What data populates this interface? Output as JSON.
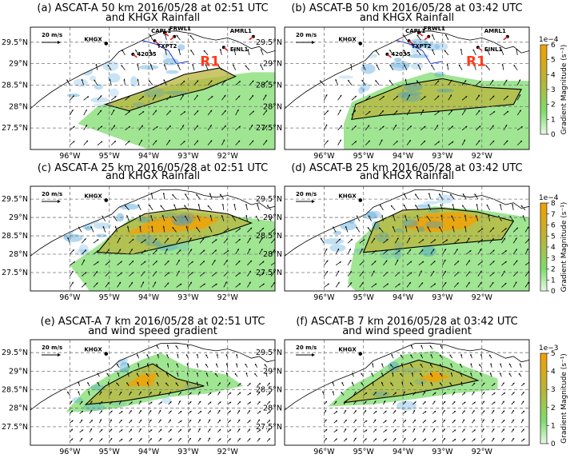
{
  "figure": {
    "panels": [
      {
        "id": "a",
        "title1": "(a) ASCAT-A 50 km 2016/05/28 at 02:51 UTC",
        "title2": "and KHGX Rainfall",
        "legend_speed": "20 m/s",
        "radar": "KHGX",
        "stations": [
          "FRWL1",
          "TXPT2",
          "42035",
          "CAPL1",
          "AMRL1",
          "EINL1"
        ],
        "region_label": "R1",
        "overlay": "rainfall",
        "variant": "a"
      },
      {
        "id": "b",
        "title1": "(b) ASCAT-B 50 km 2016/05/28 at 03:42 UTC",
        "title2": "and KHGX Rainfall",
        "legend_speed": "20 m/s",
        "radar": "KHGX",
        "stations": [
          "FRWL1",
          "TXPT2",
          "42035",
          "CAPL1",
          "AMRL1",
          "EINL1"
        ],
        "region_label": "R1",
        "overlay": "rainfall",
        "variant": "b"
      },
      {
        "id": "c",
        "title1": "(c) ASCAT-A 25 km 2016/05/28 at 02:51 UTC",
        "title2": "and KHGX Rainfall",
        "legend_speed": "20 m/s",
        "radar": "KHGX",
        "stations": [],
        "region_label": "",
        "overlay": "rainfall",
        "variant": "c"
      },
      {
        "id": "d",
        "title1": "(d) ASCAT-B 25 km 2016/05/28 at 03:42 UTC",
        "title2": "and KHGX Rainfall",
        "legend_speed": "20 m/s",
        "radar": "KHGX",
        "stations": [],
        "region_label": "",
        "overlay": "rainfall",
        "variant": "d"
      },
      {
        "id": "e",
        "title1": "(e) ASCAT-A 7 km 2016/05/28 at 02:51 UTC",
        "title2": "and wind speed gradient",
        "legend_speed": "20 m/s",
        "radar": "KHGX",
        "stations": [],
        "region_label": "",
        "overlay": "gradient",
        "variant": "e"
      },
      {
        "id": "f",
        "title1": "(f) ASCAT-B 7 km 2016/05/28 at 03:42 UTC",
        "title2": "and wind speed gradient",
        "legend_speed": "20 m/s",
        "radar": "KHGX",
        "stations": [],
        "region_label": "",
        "overlay": "gradient",
        "variant": "f"
      }
    ],
    "colorbars": [
      {
        "row": 0,
        "exp": "1e−4",
        "label": "Gradient Magnitude (s⁻¹)",
        "ticks": [
          "0",
          "1",
          "2",
          "3",
          "4",
          "5",
          "6"
        ],
        "max": 6
      },
      {
        "row": 1,
        "exp": "1e−4",
        "label": "Gradient Magnitude (s⁻¹)",
        "ticks": [
          "0",
          "1",
          "2",
          "3",
          "4",
          "5",
          "6",
          "7",
          "8"
        ],
        "max": 8
      },
      {
        "row": 2,
        "exp": "1e−3",
        "label": "Gradient Magnitude (s⁻¹)",
        "ticks": [
          "0",
          "1",
          "2",
          "3",
          "4",
          "5"
        ],
        "max": 5
      }
    ],
    "colors": {
      "low": "#7fdc6e",
      "mid": "#b8b43a",
      "high": "#f5a000",
      "rain": "#3a9ad6",
      "coast": "#000000",
      "rain_contour": "#1b2bd8"
    }
  },
  "chart_data": [
    {
      "type": "heatmap",
      "panel": "a",
      "title": "(a) ASCAT-A 50 km 2016/05/28 at 02:51 UTC and KHGX Rainfall",
      "xlabel": "",
      "ylabel": "",
      "xlim": [
        -97.0,
        -90.8
      ],
      "ylim": [
        27.0,
        29.85
      ],
      "x_ticks": [
        "96°W",
        "95°W",
        "94°W",
        "93°W",
        "92°W"
      ],
      "x_tick_values": [
        -96,
        -95,
        -94,
        -93,
        -92
      ],
      "y_ticks": [
        "27.5°N",
        "28°N",
        "28.5°N",
        "29°N",
        "29.5°N"
      ],
      "y_tick_values": [
        27.5,
        28,
        28.5,
        29,
        29.5
      ]
    },
    {
      "type": "heatmap",
      "panel": "b",
      "title": "(b) ASCAT-B 50 km 2016/05/28 at 03:42 UTC and KHGX Rainfall",
      "xlabel": "",
      "ylabel": "",
      "xlim": [
        -97.0,
        -90.8
      ],
      "ylim": [
        27.0,
        29.85
      ],
      "x_ticks": [
        "96°W",
        "95°W",
        "94°W",
        "93°W",
        "92°W"
      ],
      "x_tick_values": [
        -96,
        -95,
        -94,
        -93,
        -92
      ],
      "y_ticks": [
        "27.5°N",
        "28°N",
        "28.5°N",
        "29°N",
        "29.5°N"
      ],
      "y_tick_values": [
        27.5,
        28,
        28.5,
        29,
        29.5
      ]
    },
    {
      "type": "heatmap",
      "panel": "c",
      "title": "(c) ASCAT-A 25 km 2016/05/28 at 02:51 UTC and KHGX Rainfall",
      "xlabel": "",
      "ylabel": "",
      "xlim": [
        -97.0,
        -90.8
      ],
      "ylim": [
        27.0,
        29.85
      ],
      "x_ticks": [
        "96°W",
        "95°W",
        "94°W",
        "93°W",
        "92°W"
      ],
      "x_tick_values": [
        -96,
        -95,
        -94,
        -93,
        -92
      ],
      "y_ticks": [
        "27.5°N",
        "28°N",
        "28.5°N",
        "29°N",
        "29.5°N"
      ],
      "y_tick_values": [
        27.5,
        28,
        28.5,
        29,
        29.5
      ]
    },
    {
      "type": "heatmap",
      "panel": "d",
      "title": "(d) ASCAT-B 25 km 2016/05/28 at 03:42 UTC and KHGX Rainfall",
      "xlabel": "",
      "ylabel": "",
      "xlim": [
        -97.0,
        -90.8
      ],
      "ylim": [
        27.0,
        29.85
      ],
      "x_ticks": [
        "96°W",
        "95°W",
        "94°W",
        "93°W",
        "92°W"
      ],
      "x_tick_values": [
        -96,
        -95,
        -94,
        -93,
        -92
      ],
      "y_ticks": [
        "27.5°N",
        "28°N",
        "28.5°N",
        "29°N",
        "29.5°N"
      ],
      "y_tick_values": [
        27.5,
        28,
        28.5,
        29,
        29.5
      ]
    },
    {
      "type": "heatmap",
      "panel": "e",
      "title": "(e) ASCAT-A 7 km 2016/05/28 at 02:51 UTC and wind speed gradient",
      "xlabel": "",
      "ylabel": "",
      "xlim": [
        -97.0,
        -90.8
      ],
      "ylim": [
        27.0,
        29.85
      ],
      "x_ticks": [
        "96°W",
        "95°W",
        "94°W",
        "93°W",
        "92°W"
      ],
      "x_tick_values": [
        -96,
        -95,
        -94,
        -93,
        -92
      ],
      "y_ticks": [
        "27.5°N",
        "28°N",
        "28.5°N",
        "29°N",
        "29.5°N"
      ],
      "y_tick_values": [
        27.5,
        28,
        28.5,
        29,
        29.5
      ]
    },
    {
      "type": "heatmap",
      "panel": "f",
      "title": "(f) ASCAT-B 7 km 2016/05/28 at 03:42 UTC and wind speed gradient",
      "xlabel": "",
      "ylabel": "",
      "xlim": [
        -97.0,
        -90.8
      ],
      "ylim": [
        27.0,
        29.85
      ],
      "x_ticks": [
        "96°W",
        "95°W",
        "94°W",
        "93°W",
        "92°W"
      ],
      "x_tick_values": [
        -96,
        -95,
        -94,
        -93,
        -92
      ],
      "y_ticks": [
        "27.5°N",
        "28°N",
        "28.5°N",
        "29°N",
        "29.5°N"
      ],
      "y_tick_values": [
        27.5,
        28,
        28.5,
        29,
        29.5
      ]
    }
  ]
}
